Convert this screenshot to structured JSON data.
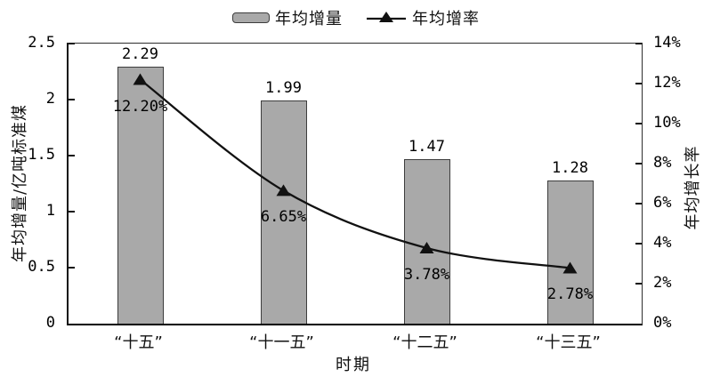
{
  "chart": {
    "legend": [
      {
        "label": "年均增量",
        "marker": "bar-swatch"
      },
      {
        "label": "年均增率",
        "marker": "line-triangle"
      }
    ],
    "left_axis": {
      "title": "年均增量/亿吨标准煤",
      "ticks": [
        "0",
        "0.5",
        "1",
        "1.5",
        "2",
        "2.5"
      ]
    },
    "right_axis": {
      "title": "年均增长率",
      "ticks": [
        "0%",
        "2%",
        "4%",
        "6%",
        "8%",
        "10%",
        "12%",
        "14%"
      ]
    },
    "x_axis": {
      "title": "时期"
    },
    "colors": {
      "bar_fill": "#a9a9a9",
      "bar_border": "#3d3d3d",
      "line": "#111111",
      "axis": "#2e2e2e",
      "text": "#111111"
    }
  },
  "chart_data": {
    "type": "bar",
    "subtype": "bar+line combo",
    "categories": [
      "“十五”",
      "“十一五”",
      "“十二五”",
      "“十三五”"
    ],
    "series": [
      {
        "name": "年均增量",
        "type": "bar",
        "axis": "left",
        "values": [
          2.29,
          1.99,
          1.47,
          1.28
        ],
        "labels": [
          "2.29",
          "1.99",
          "1.47",
          "1.28"
        ]
      },
      {
        "name": "年均增率",
        "type": "line",
        "axis": "right",
        "marker": "filled-triangle",
        "values": [
          12.2,
          6.65,
          3.78,
          2.78
        ],
        "labels": [
          "12.20%",
          "6.65%",
          "3.78%",
          "2.78%"
        ]
      }
    ],
    "xlabel": "时期",
    "ylabel_left": "年均增量/亿吨标准煤",
    "ylabel_right": "年均增长率",
    "ylim_left": [
      0,
      2.5
    ],
    "ylim_right": [
      0,
      14
    ],
    "grid": false,
    "legend_position": "top-center"
  }
}
